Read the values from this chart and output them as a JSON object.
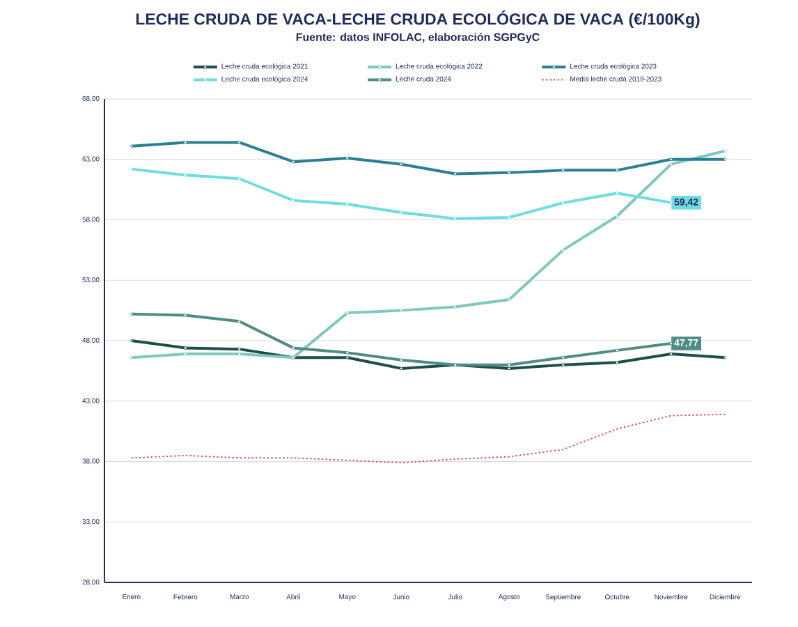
{
  "chart_data": {
    "type": "line",
    "title": "LECHE CRUDA DE VACA-LECHE CRUDA ECOLÓGICA DE VACA (€/100Kg)",
    "subtitle": "Fuente: datos INFOLAC, elaboración SGPGyC",
    "categories": [
      "Enero",
      "Febrero",
      "Marzo",
      "Abril",
      "Mayo",
      "Junio",
      "Julio",
      "Agosto",
      "Septiembre",
      "Octubre",
      "Noviembre",
      "Diciembre"
    ],
    "series": [
      {
        "name": "Leche cruda ecológica 2021",
        "color": "#1d4e4a",
        "marker": "circle",
        "values": [
          48.0,
          47.4,
          47.3,
          46.6,
          46.6,
          45.7,
          46.0,
          45.7,
          46.0,
          46.2,
          46.9,
          46.6
        ]
      },
      {
        "name": "Leche cruda ecológica 2022",
        "color": "#7fc8bc",
        "marker": "circle",
        "values": [
          46.6,
          46.9,
          46.9,
          46.6,
          50.3,
          50.5,
          50.8,
          51.4,
          55.5,
          58.3,
          62.6,
          63.7
        ]
      },
      {
        "name": "Leche cruda ecológica 2023",
        "color": "#2a7f94",
        "marker": "circle",
        "values": [
          64.1,
          64.4,
          64.4,
          62.8,
          63.1,
          62.6,
          61.8,
          61.9,
          62.1,
          62.1,
          63.0,
          63.0
        ]
      },
      {
        "name": "Leche cruda ecológica 2024",
        "color": "#6edde0",
        "marker": "circle",
        "values": [
          62.2,
          61.7,
          61.4,
          59.6,
          59.3,
          58.6,
          58.1,
          58.2,
          59.4,
          60.2,
          59.42,
          null
        ],
        "value_labels": [
          null,
          null,
          null,
          null,
          null,
          null,
          null,
          null,
          null,
          null,
          "59,42",
          null
        ]
      },
      {
        "name": "Leche cruda 2024",
        "color": "#4e8c84",
        "marker": "circle",
        "values": [
          50.2,
          50.1,
          49.6,
          47.4,
          47.0,
          46.4,
          46.0,
          46.0,
          46.6,
          47.2,
          47.77,
          null
        ],
        "value_labels": [
          null,
          null,
          null,
          null,
          null,
          null,
          null,
          null,
          null,
          null,
          "47,77",
          null
        ]
      },
      {
        "name": "Media leche cruda 2019-2023",
        "color": "#d9534f",
        "marker": "none",
        "line_style": "dotted",
        "values": [
          38.3,
          38.5,
          38.3,
          38.3,
          38.1,
          37.9,
          38.2,
          38.4,
          39.0,
          40.7,
          41.8,
          41.9
        ]
      }
    ],
    "ylim": [
      28,
      68
    ],
    "yticks": [
      {
        "value": 28,
        "label": "28,00"
      },
      {
        "value": 33,
        "label": "33,00"
      },
      {
        "value": 38,
        "label": "38,00"
      },
      {
        "value": 43,
        "label": "43,00"
      },
      {
        "value": 48,
        "label": "48,00"
      },
      {
        "value": 53,
        "label": "53,00"
      },
      {
        "value": 58,
        "label": "58,00"
      },
      {
        "value": 63,
        "label": "63,00"
      },
      {
        "value": 68,
        "label": "68,00"
      }
    ],
    "grid": "y",
    "legend": "top"
  }
}
